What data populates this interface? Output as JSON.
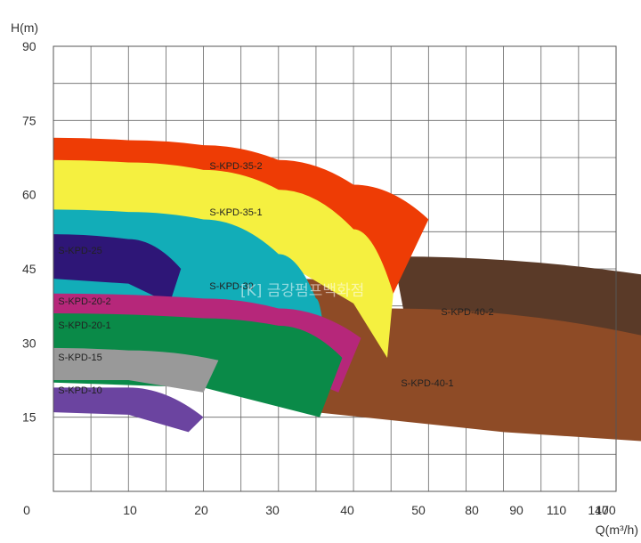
{
  "chart_data": {
    "type": "area",
    "ylabel": "H(m)",
    "xlabel": "Q(m³/h)",
    "yticks": [
      "90",
      "75",
      "60",
      "45",
      "30",
      "15"
    ],
    "xticks": [
      "0",
      "10",
      "20",
      "30",
      "40",
      "50",
      "80",
      "90",
      "110",
      "140",
      "170"
    ],
    "grid": true,
    "watermark": "[K] 금강펌프백화점",
    "bands": [
      {
        "name": "S-KPD-40-2",
        "color": "#5a3a28",
        "upper": [
          [
            45.3,
            47.5
          ],
          [
            80,
            43.5
          ],
          [
            95,
            40
          ],
          [
            140,
            38.5
          ]
        ],
        "lower": [
          [
            47.5,
            30
          ],
          [
            80,
            29
          ],
          [
            110,
            24
          ],
          [
            127,
            20
          ]
        ]
      },
      {
        "name": "S-KPD-40-1",
        "color": "#8e4b26",
        "upper": [
          [
            33,
            43
          ],
          [
            45,
            37
          ],
          [
            80,
            31
          ],
          [
            110,
            26.5
          ]
        ],
        "lower": [
          [
            35,
            16
          ],
          [
            60,
            12
          ],
          [
            90,
            9
          ]
        ]
      },
      {
        "name": "S-KPD-35-2",
        "color": "#ee3c05",
        "upper": [
          [
            0,
            71.5
          ],
          [
            10,
            71
          ],
          [
            20,
            70
          ],
          [
            30,
            67
          ],
          [
            40,
            62
          ],
          [
            50,
            55
          ]
        ],
        "lower": [
          [
            0,
            60
          ],
          [
            20,
            60
          ],
          [
            30,
            57
          ],
          [
            40,
            50
          ],
          [
            45.3,
            40
          ]
        ]
      },
      {
        "name": "S-KPD-35-1",
        "color": "#f5f040",
        "upper": [
          [
            0,
            67
          ],
          [
            10,
            66.5
          ],
          [
            20,
            65
          ],
          [
            30,
            61
          ],
          [
            40,
            53
          ],
          [
            45.3,
            40
          ]
        ],
        "lower": [
          [
            0,
            51
          ],
          [
            20,
            51
          ],
          [
            30,
            47
          ],
          [
            40,
            38
          ],
          [
            44.5,
            27
          ]
        ]
      },
      {
        "name": "S-KPD-30",
        "color": "#12adb8",
        "upper": [
          [
            0,
            57
          ],
          [
            10,
            56.5
          ],
          [
            20,
            55
          ],
          [
            30,
            48
          ],
          [
            35,
            39
          ],
          [
            36,
            33
          ]
        ],
        "lower": [
          [
            0,
            36
          ],
          [
            20,
            36
          ],
          [
            30,
            33
          ],
          [
            34,
            27
          ]
        ]
      },
      {
        "name": "S-KPD-25",
        "color": "#2e1677",
        "upper": [
          [
            0,
            52
          ],
          [
            10,
            51
          ],
          [
            17,
            45
          ]
        ],
        "lower": [
          [
            0,
            43
          ],
          [
            10,
            42
          ],
          [
            15.5,
            38
          ]
        ]
      },
      {
        "name": "S-KPD-20-2",
        "color": "#b6277a",
        "upper": [
          [
            0,
            40
          ],
          [
            20,
            39
          ],
          [
            30,
            37
          ],
          [
            41,
            31
          ]
        ],
        "lower": [
          [
            0,
            29
          ],
          [
            25,
            28
          ],
          [
            38,
            20
          ]
        ]
      },
      {
        "name": "S-KPD-20-1",
        "color": "#0a8a48",
        "upper": [
          [
            0,
            36
          ],
          [
            20,
            35
          ],
          [
            30,
            33.5
          ],
          [
            38.5,
            27
          ]
        ],
        "lower": [
          [
            0,
            22
          ],
          [
            20,
            21
          ],
          [
            35.5,
            15
          ]
        ]
      },
      {
        "name": "S-KPD-15",
        "color": "#999999",
        "upper": [
          [
            0,
            29
          ],
          [
            10,
            28.5
          ],
          [
            22,
            26.5
          ]
        ],
        "lower": [
          [
            0,
            22.5
          ],
          [
            10,
            22.5
          ],
          [
            20,
            20
          ]
        ]
      },
      {
        "name": "S-KPD-10",
        "color": "#6b44a0",
        "upper": [
          [
            0,
            21
          ],
          [
            10,
            21
          ],
          [
            20,
            15
          ]
        ],
        "lower": [
          [
            0,
            16
          ],
          [
            10,
            15.5
          ],
          [
            18,
            12
          ]
        ]
      }
    ]
  }
}
